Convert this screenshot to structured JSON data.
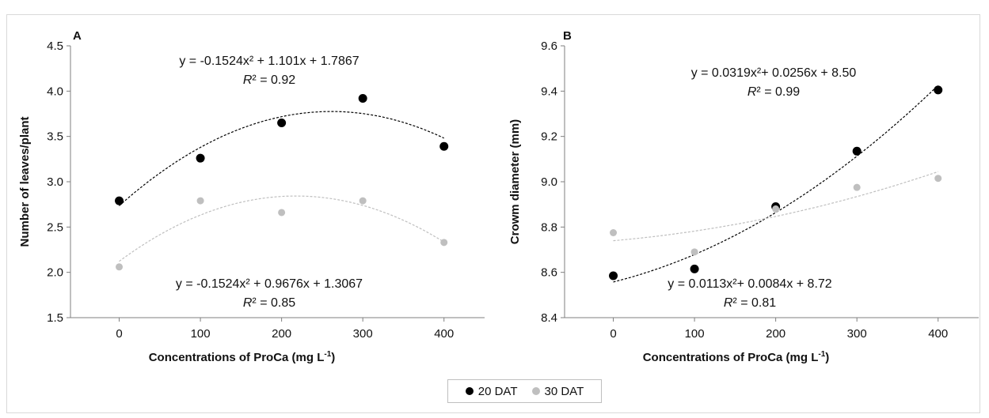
{
  "chart_data": [
    {
      "type": "scatter",
      "panel_label": "A",
      "xlabel": "Concentrations of ProCa (mg L",
      "xlabel_sup": "-1",
      "xlabel_end": ")",
      "ylabel": "Number of leaves/plant",
      "xticks": [
        "0",
        "100",
        "200",
        "300",
        "400"
      ],
      "yticks": [
        "1.5",
        "2.0",
        "2.5",
        "3.0",
        "3.5",
        "4.0",
        "4.5"
      ],
      "xlim": [
        -60,
        450
      ],
      "ylim": [
        1.5,
        4.5
      ],
      "series": [
        {
          "name": "20 DAT",
          "color": "#000000",
          "x": [
            0,
            100,
            200,
            300,
            400
          ],
          "y": [
            2.79,
            3.26,
            3.65,
            3.92,
            3.39
          ],
          "fit": {
            "a": -0.1524,
            "b": 1.101,
            "c": 1.7867
          },
          "equation": "y = -0.1524x² + 1.101x + 1.7867",
          "r2_label": "R",
          "r2_value": "² = 0.92"
        },
        {
          "name": "30 DAT",
          "color": "#bfbfbf",
          "x": [
            0,
            100,
            200,
            300,
            400
          ],
          "y": [
            2.06,
            2.79,
            2.66,
            2.79,
            2.33
          ],
          "fit": {
            "a": -0.1524,
            "b": 0.9676,
            "c": 1.3067
          },
          "equation": "y = -0.1524x² + 0.9676x + 1.3067",
          "r2_label": "R",
          "r2_value": "² = 0.85"
        }
      ]
    },
    {
      "type": "scatter",
      "panel_label": "B",
      "xlabel": "Concentrations of ProCa (mg L",
      "xlabel_sup": "-1",
      "xlabel_end": ")",
      "ylabel": "Crowm diameter (mm)",
      "xticks": [
        "0",
        "100",
        "200",
        "300",
        "400"
      ],
      "yticks": [
        "8.4",
        "8.6",
        "8.8",
        "9.0",
        "9.2",
        "9.4",
        "9.6"
      ],
      "xlim": [
        -60,
        450
      ],
      "ylim": [
        8.4,
        9.6
      ],
      "series": [
        {
          "name": "20 DAT",
          "color": "#000000",
          "x": [
            0,
            100,
            200,
            300,
            400
          ],
          "y": [
            8.585,
            8.615,
            8.89,
            9.135,
            9.405
          ],
          "fit": {
            "a": 0.0319,
            "b": 0.0256,
            "c": 8.5
          },
          "equation": "y = 0.0319x²+ 0.0256x + 8.50",
          "r2_label": "R",
          "r2_value": "² = 0.99"
        },
        {
          "name": "30 DAT",
          "color": "#bfbfbf",
          "x": [
            0,
            100,
            200,
            300,
            400
          ],
          "y": [
            8.775,
            8.69,
            8.88,
            8.975,
            9.015
          ],
          "fit": {
            "a": 0.0113,
            "b": 0.0084,
            "c": 8.72
          },
          "equation": "y = 0.0113x²+ 0.0084x + 8.72",
          "r2_label": "R",
          "r2_value": "² = 0.81"
        }
      ]
    }
  ],
  "legend": {
    "items": [
      {
        "label": "20 DAT",
        "color": "#000000"
      },
      {
        "label": "30 DAT",
        "color": "#bfbfbf"
      }
    ],
    "placement": "bottom-center"
  }
}
